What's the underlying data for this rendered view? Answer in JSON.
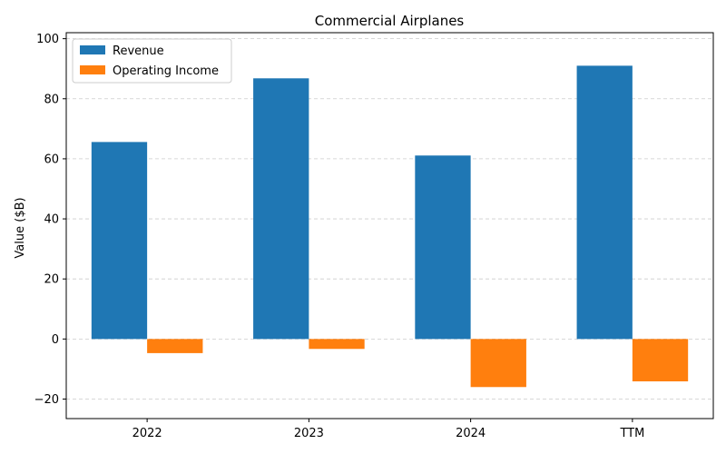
{
  "chart_data": {
    "type": "bar",
    "title": "Commercial Airplanes",
    "xlabel": "",
    "ylabel": "Value ($B)",
    "categories": [
      "2022",
      "2023",
      "2024",
      "TTM"
    ],
    "series": [
      {
        "name": "Revenue",
        "values": [
          65.6,
          86.8,
          61.1,
          91.0
        ],
        "color": "#1f77b4"
      },
      {
        "name": "Operating Income",
        "values": [
          -4.7,
          -3.3,
          -16.0,
          -14.1
        ],
        "color": "#ff7f0e"
      }
    ],
    "ylim": [
      -26.5,
      102
    ],
    "yticks": [
      -20,
      0,
      20,
      40,
      60,
      80,
      100
    ],
    "ytick_labels": [
      "−20",
      "0",
      "20",
      "40",
      "60",
      "80",
      "100"
    ],
    "grid": "y",
    "legend": "top-left"
  }
}
